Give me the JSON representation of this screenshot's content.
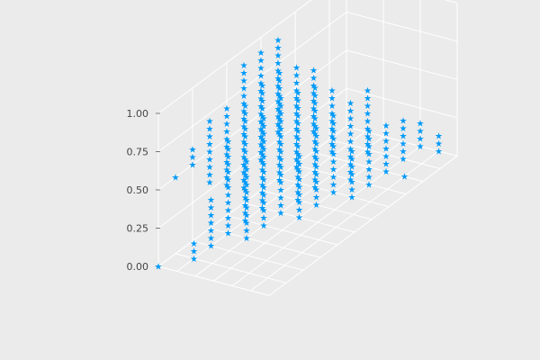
{
  "chart_data": {
    "type": "scatter3d",
    "marker": "star",
    "marker_color": "#009af9",
    "background": "#ebebeb",
    "grid": true,
    "title": "",
    "xlabel": "",
    "ylabel": "",
    "zlabel": "",
    "zticks": [
      "0.00",
      "0.25",
      "0.50",
      "0.75",
      "1.00"
    ],
    "zlim": [
      0,
      1
    ],
    "series": [
      {
        "columns": [
          {
            "i": 0,
            "j": 0,
            "z": [
              0.0
            ]
          },
          {
            "i": 0,
            "j": 1,
            "z": [
              0.5
            ]
          },
          {
            "i": 0,
            "j": 2,
            "z": [
              0.5,
              0.6
            ]
          },
          {
            "i": 0,
            "j": 3,
            "z": [
              0.3,
              0.7
            ]
          },
          {
            "i": 0,
            "j": 4,
            "z": [
              0.2,
              0.7
            ]
          },
          {
            "i": 0,
            "j": 5,
            "z": [
              0.1,
              0.9
            ]
          },
          {
            "i": 0,
            "j": 6,
            "z": [
              0.2,
              0.9
            ]
          },
          {
            "i": 0,
            "j": 7,
            "z": [
              0.3,
              0.9
            ]
          },
          {
            "i": 1,
            "j": 1,
            "z": [
              0.0,
              0.1
            ]
          },
          {
            "i": 1,
            "j": 2,
            "z": [
              0.0,
              0.3
            ]
          },
          {
            "i": 1,
            "j": 3,
            "z": [
              0.0,
              0.6
            ]
          },
          {
            "i": 1,
            "j": 4,
            "z": [
              0.0,
              0.75
            ]
          },
          {
            "i": 1,
            "j": 5,
            "z": [
              0.0,
              0.8
            ]
          },
          {
            "i": 1,
            "j": 6,
            "z": [
              0.1,
              0.8
            ]
          },
          {
            "i": 1,
            "j": 7,
            "z": [
              0.1,
              0.75
            ]
          },
          {
            "i": 1,
            "j": 8,
            "z": [
              0.25,
              0.65
            ]
          },
          {
            "i": 2,
            "j": 3,
            "z": [
              0.0,
              0.5
            ]
          },
          {
            "i": 2,
            "j": 4,
            "z": [
              0.0,
              0.7
            ]
          },
          {
            "i": 2,
            "j": 5,
            "z": [
              0.0,
              0.75
            ]
          },
          {
            "i": 2,
            "j": 6,
            "z": [
              0.0,
              0.7
            ]
          },
          {
            "i": 2,
            "j": 7,
            "z": [
              0.0,
              0.65
            ]
          },
          {
            "i": 2,
            "j": 8,
            "z": [
              0.15,
              0.55
            ]
          },
          {
            "i": 3,
            "j": 5,
            "z": [
              0.0,
              0.4
            ]
          },
          {
            "i": 3,
            "j": 6,
            "z": [
              0.0,
              0.5
            ]
          },
          {
            "i": 3,
            "j": 7,
            "z": [
              0.0,
              0.5
            ]
          },
          {
            "i": 3,
            "j": 8,
            "z": [
              0.0,
              0.5
            ]
          },
          {
            "i": 3,
            "j": 9,
            "z": [
              0.1,
              0.5
            ]
          },
          {
            "i": 4,
            "j": 7,
            "z": [
              0.0,
              0.3
            ]
          },
          {
            "i": 4,
            "j": 8,
            "z": [
              0.0,
              0.35
            ]
          },
          {
            "i": 4,
            "j": 9,
            "z": [
              0.0,
              0.3
            ]
          },
          {
            "i": 4,
            "j": 10,
            "z": [
              0.0,
              0.25
            ]
          },
          {
            "i": 4,
            "j": 11,
            "z": [
              0.0,
              0.15
            ]
          },
          {
            "i": 5,
            "j": 9,
            "z": [
              0.0
            ]
          },
          {
            "i": 5,
            "j": 11,
            "z": [
              0.0,
              0.1
            ]
          }
        ]
      }
    ]
  }
}
